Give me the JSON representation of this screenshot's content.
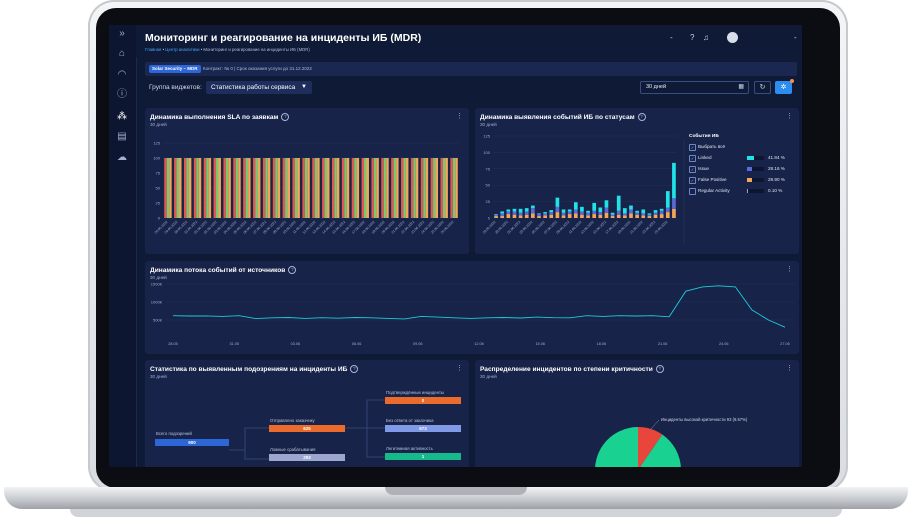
{
  "app": {
    "title": "Мониторинг и реагирование на инциденты ИБ (MDR)",
    "breadcrumb": [
      "Главная",
      "Центр аналитики",
      "Мониторинг и реагирование на инциденты ИБ (MDR)"
    ],
    "breadcrumb_sep": "•"
  },
  "topbar": {
    "dropdown_mark": "-",
    "help_icon": "question-circle-icon",
    "bell_icon": "bell-icon",
    "user_chevron": "-"
  },
  "sidebar": {
    "items": [
      {
        "icon": "expand-icon",
        "glyph": "»"
      },
      {
        "icon": "home-icon",
        "glyph": "⌂"
      },
      {
        "icon": "shield-icon",
        "glyph": "◠"
      },
      {
        "icon": "info-icon",
        "glyph": "ⓘ"
      },
      {
        "icon": "analytics-icon",
        "glyph": "⁂"
      },
      {
        "icon": "report-icon",
        "glyph": "▤"
      },
      {
        "icon": "cloud-shield-icon",
        "glyph": "☁"
      }
    ]
  },
  "info": {
    "badge": "Solar Security – MDR",
    "contract": "Контракт: № 0 | Срок оказания услуги до 31.12.2022"
  },
  "controls": {
    "group_label": "Группа виджетов:",
    "group_value": "Статистика работы сервиса",
    "period_value": "30 дней"
  },
  "widgets": {
    "sla": {
      "title": "Динамика выполнения SLA по заявкам",
      "period": "30 дней"
    },
    "events": {
      "title": "Динамика выявления событий ИБ по статусам",
      "period": "30 дней"
    },
    "flow": {
      "title": "Динамика потока событий от источников",
      "period": "30 дней"
    },
    "stats": {
      "title": "Статистика по выявленным подозрениям на инциденты ИБ",
      "period": "30 дней"
    },
    "severity": {
      "title": "Распределение инцидентов по степени критичности",
      "period": "30 дней"
    }
  },
  "colors": {
    "accent": "#2d8cf0",
    "linked": "#20e3e8",
    "issue": "#5b6bd6",
    "false_positive": "#f2a65a",
    "regular": "#9aa7c7",
    "sla_red": "#e05757",
    "sla_green": "#7bc96f",
    "sla_orange": "#f2a65a",
    "pie_green": "#19d190",
    "pie_red": "#e8453c"
  },
  "legend": {
    "title": "События ИБ",
    "items": [
      {
        "label": "Выбрать всё",
        "checked": true,
        "pct": "",
        "fill": 0
      },
      {
        "label": "Linked",
        "checked": true,
        "pct": "41.84 %",
        "fill": 0.42,
        "color": "#20e3e8"
      },
      {
        "label": "Issue",
        "checked": true,
        "pct": "28.16 %",
        "fill": 0.28,
        "color": "#5b6bd6"
      },
      {
        "label": "False Positive",
        "checked": true,
        "pct": "29.90 %",
        "fill": 0.3,
        "color": "#f2a65a"
      },
      {
        "label": "Regular Activity",
        "checked": false,
        "pct": "0.10 %",
        "fill": 0.001,
        "color": "#9aa7c7"
      }
    ]
  },
  "stats_tree": {
    "root_label": "Всего подозрений",
    "root_value": "900",
    "sent_label": "Отправлено заказчику",
    "sent_value": "625",
    "false_label": "Ложные срабатывания",
    "false_value": "293",
    "confirmed_label": "Подтверждённые инциденты",
    "confirmed_value": "0",
    "noanswer_label": "Без ответа от заказчика",
    "noanswer_value": "673",
    "legit_label": "Легитимная активность",
    "legit_value": "1"
  },
  "chart_data": [
    {
      "type": "bar",
      "title": "Динамика выполнения SLA по заявкам",
      "ylim": [
        0,
        125
      ],
      "yticks": [
        "0",
        "25",
        "50",
        "75",
        "100",
        "125"
      ],
      "categories": [
        "28.05.2022",
        "29.05.2022",
        "30.05.2022",
        "31.05.2022",
        "01.06.2022",
        "02.06.2022",
        "03.06.2022",
        "04.06.2022",
        "05.06.2022",
        "06.06.2022",
        "07.06.2022",
        "08.06.2022",
        "09.06.2022",
        "10.06.2022",
        "11.06.2022",
        "12.06.2022",
        "13.06.2022",
        "14.06.2022",
        "15.06.2022",
        "16.06.2022",
        "17.06.2022",
        "18.06.2022",
        "19.06.2022",
        "20.06.2022",
        "21.06.2022",
        "22.06.2022",
        "23.06.2022",
        "24.06.2022",
        "25.06.2022",
        "26.06.2022"
      ],
      "series": [
        {
          "color": "#e05757",
          "values": [
            100,
            100,
            100,
            100,
            100,
            100,
            100,
            100,
            100,
            100,
            100,
            100,
            100,
            100,
            100,
            100,
            100,
            100,
            100,
            100,
            100,
            100,
            100,
            100,
            100,
            100,
            100,
            100,
            100,
            100
          ]
        },
        {
          "color": "#7bc96f",
          "values": [
            100,
            100,
            100,
            100,
            100,
            100,
            100,
            100,
            100,
            100,
            100,
            100,
            100,
            100,
            100,
            100,
            100,
            100,
            100,
            100,
            100,
            100,
            100,
            100,
            100,
            100,
            100,
            100,
            100,
            100
          ]
        },
        {
          "color": "#f2a65a",
          "values": [
            100,
            100,
            100,
            100,
            100,
            100,
            100,
            100,
            100,
            100,
            100,
            100,
            100,
            100,
            100,
            100,
            100,
            100,
            100,
            100,
            100,
            100,
            100,
            100,
            100,
            100,
            100,
            100,
            100,
            100
          ]
        }
      ]
    },
    {
      "type": "bar",
      "stacked": true,
      "title": "Динамика выявления событий ИБ по статусам",
      "ylim": [
        0,
        125
      ],
      "yticks": [
        "0",
        "25",
        "50",
        "75",
        "100",
        "125"
      ],
      "categories": [
        "28.05.2022",
        "29.05.2022",
        "30.05.2022",
        "31.05.2022",
        "01.06.2022",
        "02.06.2022",
        "03.06.2022",
        "04.06.2022",
        "05.06.2022",
        "06.06.2022",
        "07.06.2022",
        "08.06.2022",
        "09.06.2022",
        "10.06.2022",
        "11.06.2022",
        "12.06.2022",
        "13.06.2022",
        "14.06.2022",
        "15.06.2022",
        "16.06.2022",
        "17.06.2022",
        "18.06.2022",
        "19.06.2022",
        "20.06.2022",
        "21.06.2022",
        "22.06.2022",
        "23.06.2022",
        "24.06.2022",
        "25.06.2022",
        "26.06.2022"
      ],
      "series": [
        {
          "name": "False Positive",
          "color": "#f2a65a",
          "values": [
            3,
            3,
            6,
            5,
            4,
            5,
            7,
            3,
            4,
            5,
            9,
            4,
            6,
            7,
            5,
            4,
            6,
            5,
            8,
            3,
            5,
            4,
            7,
            5,
            4,
            3,
            5,
            6,
            9,
            14
          ]
        },
        {
          "name": "Issue",
          "color": "#5b6bd6",
          "values": [
            2,
            4,
            4,
            5,
            4,
            5,
            8,
            3,
            3,
            4,
            8,
            4,
            4,
            6,
            5,
            4,
            5,
            4,
            8,
            2,
            6,
            3,
            6,
            3,
            3,
            2,
            3,
            5,
            7,
            16
          ]
        },
        {
          "name": "Linked",
          "color": "#20e3e8",
          "values": [
            1,
            3,
            3,
            4,
            6,
            5,
            4,
            1,
            2,
            3,
            14,
            5,
            3,
            11,
            7,
            3,
            12,
            7,
            11,
            3,
            23,
            8,
            6,
            3,
            6,
            2,
            4,
            3,
            25,
            54
          ]
        }
      ]
    },
    {
      "type": "line",
      "title": "Динамика потока событий от источников",
      "ylim": [
        0,
        1500000
      ],
      "yticks": [
        "500К",
        "1000К",
        "1500К"
      ],
      "xticks": [
        "28.05",
        "31.05",
        "03.06",
        "06.06",
        "09.06",
        "12.06",
        "15.06",
        "18.06",
        "21.06",
        "24.06",
        "27.06"
      ],
      "series": [
        {
          "color": "#20c9d8",
          "values": [
            620,
            610,
            615,
            600,
            620,
            540,
            560,
            570,
            545,
            565,
            550,
            570,
            560,
            545,
            530,
            600,
            580,
            560,
            545,
            560,
            570,
            555,
            580,
            565,
            560,
            620,
            600,
            620,
            610,
            620,
            590,
            1300,
            1420,
            1450,
            1420,
            780,
            500,
            300
          ]
        }
      ],
      "unit": "K"
    },
    {
      "type": "pie",
      "title": "Распределение инцидентов по степени критичности",
      "series": [
        {
          "name": "Инциденты высокой критичности",
          "value": 93,
          "pct": "9.57%",
          "color": "#e8453c"
        },
        {
          "name": "",
          "value": 879,
          "pct": "90.43%",
          "color": "#19d190"
        }
      ],
      "annotation": "Инциденты высокой критичности 93 (9.57%)"
    }
  ]
}
